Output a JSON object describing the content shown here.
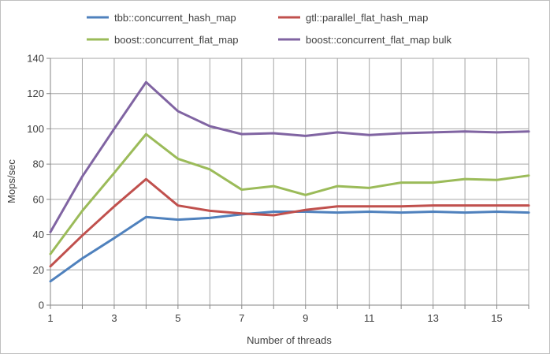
{
  "chart_data": {
    "type": "line",
    "title": "",
    "xlabel": "Number of threads",
    "ylabel": "Mops/sec",
    "xlim": [
      1,
      16
    ],
    "ylim": [
      0,
      140
    ],
    "x_ticks": [
      1,
      3,
      5,
      7,
      9,
      11,
      13,
      15
    ],
    "y_ticks": [
      0,
      20,
      40,
      60,
      80,
      100,
      120,
      140
    ],
    "grid": "vertical and horizontal gridlines",
    "legend_position": "top",
    "x": [
      1,
      2,
      3,
      4,
      5,
      6,
      7,
      8,
      9,
      10,
      11,
      12,
      13,
      14,
      15,
      16
    ],
    "series": [
      {
        "name": "tbb::concurrent_hash_map",
        "color": "#4f81bd",
        "values": [
          13.5,
          26.5,
          38,
          50,
          48.5,
          49.5,
          51.5,
          53,
          53,
          52.5,
          53,
          52.5,
          53,
          52.5,
          53,
          52.5
        ]
      },
      {
        "name": "gtl::parallel_flat_hash_map",
        "color": "#c0504d",
        "values": [
          22,
          39.5,
          56,
          71.5,
          56.5,
          53.5,
          52,
          51,
          54,
          56,
          56,
          56,
          56.5,
          56.5,
          56.5,
          56.5
        ]
      },
      {
        "name": "boost::concurrent_flat_map",
        "color": "#9bbb59",
        "values": [
          29,
          53.5,
          75,
          97,
          83,
          77,
          65.5,
          67.5,
          62.5,
          67.5,
          66.5,
          69.5,
          69.5,
          71.5,
          71,
          73.5
        ]
      },
      {
        "name": "boost::concurrent_flat_map bulk",
        "color": "#8064a2",
        "values": [
          41.5,
          73,
          100,
          126.5,
          110,
          101.5,
          97,
          97.5,
          96,
          98,
          96.5,
          97.5,
          98,
          98.5,
          98,
          98.5
        ]
      }
    ]
  }
}
